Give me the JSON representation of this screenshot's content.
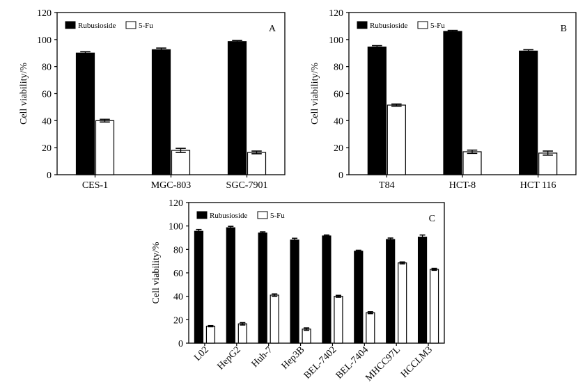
{
  "chart_data": [
    {
      "type": "bar",
      "panel_label": "A",
      "ylabel": "Cell viability/%",
      "ylim": [
        0,
        120
      ],
      "yticks": [
        "0",
        "20",
        "40",
        "60",
        "80",
        "100",
        "120"
      ],
      "categories": [
        "CES-1",
        "MGC-803",
        "SGC-7901"
      ],
      "legend_position": "top-left",
      "series": [
        {
          "name": "Rubusioside",
          "color": "#000000",
          "values": [
            90,
            92.5,
            98.5
          ],
          "errors": [
            1.0,
            1.2,
            0.8
          ]
        },
        {
          "name": "5-Fu",
          "color": "#ffffff",
          "values": [
            40,
            18,
            16.5
          ],
          "errors": [
            1.0,
            1.5,
            1.0
          ]
        }
      ]
    },
    {
      "type": "bar",
      "panel_label": "B",
      "ylabel": "Cell viability/%",
      "ylim": [
        0,
        120
      ],
      "yticks": [
        "0",
        "20",
        "40",
        "60",
        "80",
        "100",
        "120"
      ],
      "categories": [
        "T84",
        "HCT-8",
        "HCT 116"
      ],
      "legend_position": "top-left",
      "series": [
        {
          "name": "Rubusioside",
          "color": "#000000",
          "values": [
            94.5,
            106,
            91.5
          ],
          "errors": [
            1.0,
            0.8,
            1.0
          ]
        },
        {
          "name": "5-Fu",
          "color": "#ffffff",
          "values": [
            51.5,
            17,
            16
          ],
          "errors": [
            0.8,
            1.2,
            1.5
          ]
        }
      ]
    },
    {
      "type": "bar",
      "panel_label": "C",
      "ylabel": "Cell viability/%",
      "ylim": [
        0,
        120
      ],
      "yticks": [
        "0",
        "20",
        "40",
        "60",
        "80",
        "100",
        "120"
      ],
      "categories": [
        "L02",
        "HepG2",
        "Huh-7",
        "Hep3B",
        "BEL-7402",
        "BEL-7404",
        "MHCC97L",
        "HCCLM3"
      ],
      "legend_position": "top-left",
      "series": [
        {
          "name": "Rubusioside",
          "color": "#000000",
          "values": [
            95.5,
            98.5,
            94,
            88,
            91.5,
            78.5,
            88.5,
            90.5
          ],
          "errors": [
            1.5,
            1.2,
            1.0,
            1.5,
            0.8,
            0.8,
            1.2,
            1.8
          ]
        },
        {
          "name": "5-Fu",
          "color": "#ffffff",
          "values": [
            14.5,
            16.5,
            41,
            12,
            40,
            26,
            68.5,
            63
          ],
          "errors": [
            0.5,
            1.0,
            1.0,
            1.0,
            0.8,
            0.8,
            0.8,
            0.8
          ]
        }
      ]
    }
  ]
}
